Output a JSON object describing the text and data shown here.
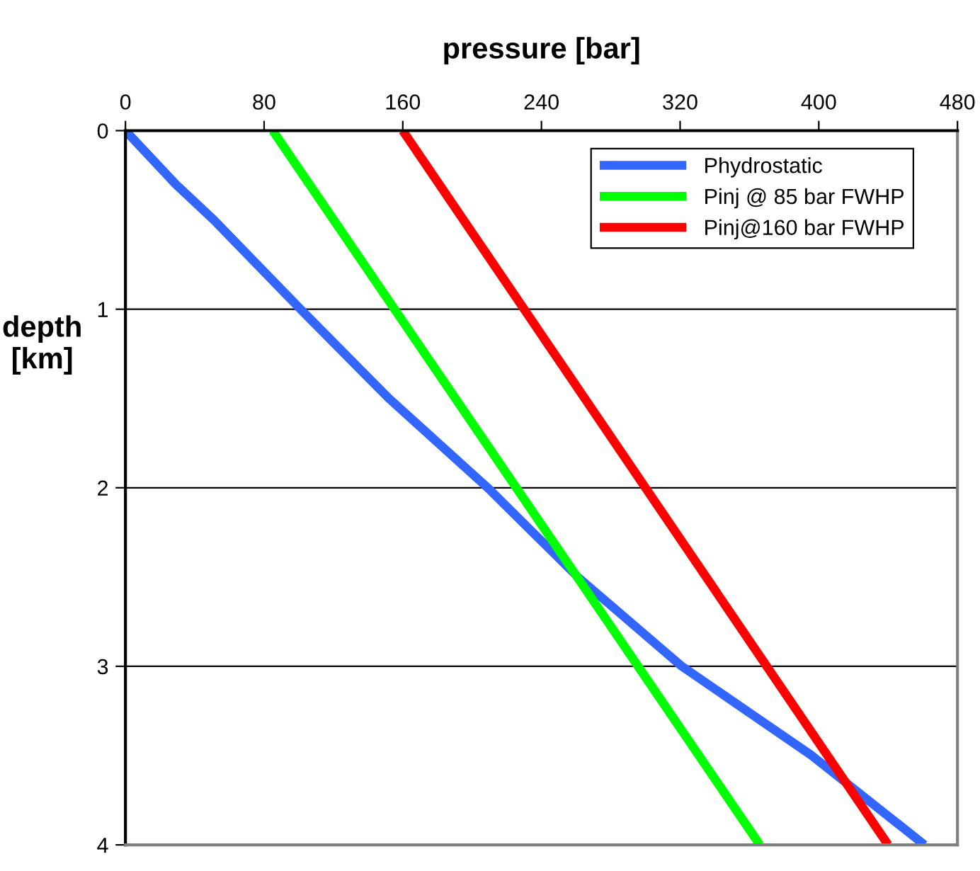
{
  "chart_data": {
    "type": "line",
    "xlabel": "pressure [bar]",
    "ylabel": "depth\n[km]",
    "xlim": [
      0,
      480
    ],
    "xticks": [
      0,
      80,
      160,
      240,
      320,
      400,
      480
    ],
    "ylim": [
      4,
      0
    ],
    "yticks": [
      0,
      1,
      2,
      3,
      4
    ],
    "grid": "y",
    "legend": "top right",
    "marker": "none",
    "line_style": "solid",
    "series": [
      {
        "name": "Phydrostatic",
        "color": "#3366ff",
        "x": [
          0,
          29,
          51,
          101,
          152,
          209,
          261,
          321,
          396,
          461
        ],
        "values": [
          0,
          0.3,
          0.5,
          1,
          1.5,
          2,
          2.5,
          3,
          3.5,
          4
        ]
      },
      {
        "name": "Pinj @ 85 bar FWHP",
        "color": "#00ff00",
        "x": [
          85,
          366
        ],
        "values": [
          0,
          4
        ]
      },
      {
        "name": "Pinj@160 bar FWHP",
        "color": "#ff0000",
        "x": [
          160,
          440
        ],
        "values": [
          0,
          4
        ]
      }
    ]
  }
}
